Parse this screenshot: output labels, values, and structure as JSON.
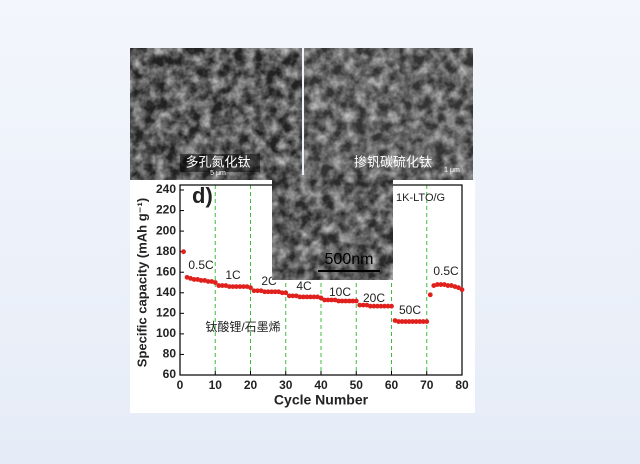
{
  "images": {
    "left_label": "多孔氮化钛",
    "left_scale": "5 μm",
    "right_label": "掺钒碳硫化钛",
    "right_scale": "1 μm",
    "inset_scale": "500nm"
  },
  "chart_data": {
    "type": "scatter",
    "panel_label": "d)",
    "legend_text": "1K-LTO/G",
    "x_label": "Cycle Number",
    "y_label": "Specific capacity (mAh g⁻¹)",
    "color": "#e0201c",
    "x": [
      1,
      2,
      3,
      4,
      5,
      6,
      7,
      8,
      9,
      10,
      11,
      12,
      13,
      14,
      15,
      16,
      17,
      18,
      19,
      20,
      21,
      22,
      23,
      24,
      25,
      26,
      27,
      28,
      29,
      30,
      31,
      32,
      33,
      34,
      35,
      36,
      37,
      38,
      39,
      40,
      41,
      42,
      43,
      44,
      45,
      46,
      47,
      48,
      49,
      50,
      51,
      52,
      53,
      54,
      55,
      56,
      57,
      58,
      59,
      60,
      61,
      62,
      63,
      64,
      65,
      66,
      67,
      68,
      69,
      70,
      71,
      72,
      73,
      74,
      75,
      76,
      77,
      78,
      79,
      80
    ],
    "values": [
      180,
      155,
      154,
      153,
      153,
      152,
      152,
      151,
      151,
      150,
      147,
      147,
      147,
      146,
      146,
      146,
      146,
      146,
      146,
      145,
      142,
      142,
      142,
      141,
      141,
      141,
      141,
      141,
      140,
      140,
      137,
      137,
      137,
      136,
      136,
      136,
      136,
      136,
      136,
      135,
      133,
      133,
      133,
      133,
      132,
      132,
      132,
      132,
      132,
      132,
      128,
      128,
      128,
      127,
      127,
      127,
      127,
      127,
      127,
      127,
      113,
      112,
      112,
      112,
      112,
      112,
      112,
      112,
      112,
      112,
      138,
      147,
      148,
      148,
      148,
      147,
      147,
      146,
      145,
      143
    ],
    "vlines": [
      10,
      20,
      30,
      40,
      50,
      60,
      70
    ],
    "vline_color": "#3bbf3b",
    "annotations": [
      "0.5C",
      "1C",
      "2C",
      "4C",
      "10C",
      "20C",
      "50C",
      "0.5C",
      "钛酸锂/石墨烯"
    ],
    "xlim": [
      0,
      80
    ],
    "xticks": [
      0,
      10,
      20,
      30,
      40,
      50,
      60,
      70,
      80
    ],
    "ylim": [
      60,
      240
    ],
    "yticks": [
      60,
      80,
      100,
      120,
      140,
      160,
      180,
      200,
      220,
      240
    ]
  }
}
